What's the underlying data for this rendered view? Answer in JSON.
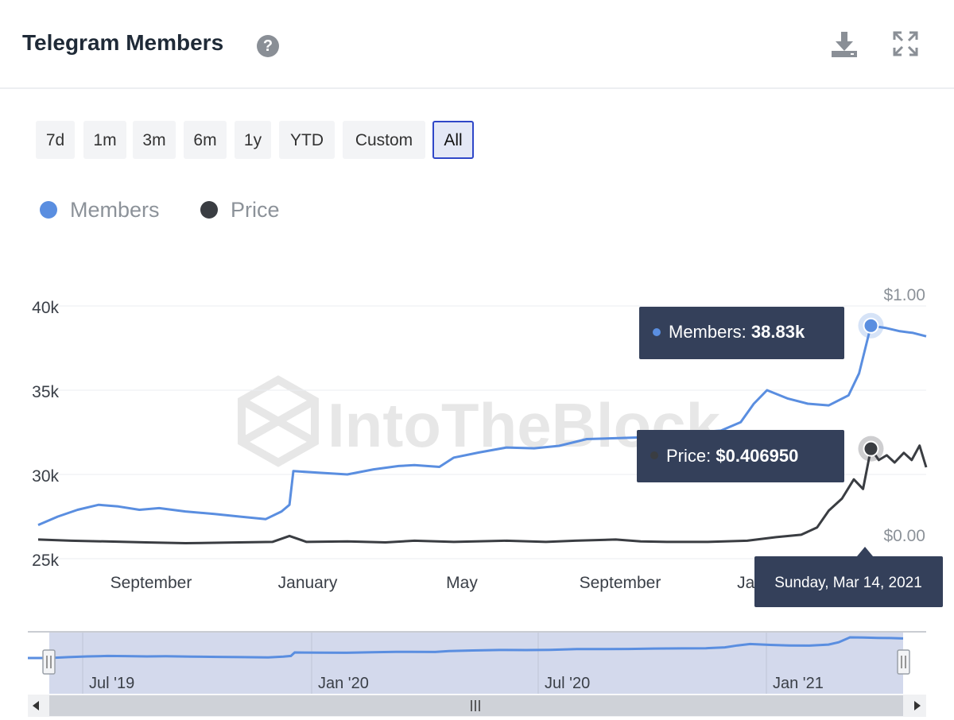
{
  "header": {
    "title": "Telegram Members"
  },
  "icons": {
    "help": "help-icon",
    "download": "download-icon",
    "expand": "expand-icon"
  },
  "ranges": [
    {
      "label": "7d",
      "active": false
    },
    {
      "label": "1m",
      "active": false
    },
    {
      "label": "3m",
      "active": false
    },
    {
      "label": "6m",
      "active": false
    },
    {
      "label": "1y",
      "active": false
    },
    {
      "label": "YTD",
      "active": false
    },
    {
      "label": "Custom",
      "active": false
    },
    {
      "label": "All",
      "active": true
    }
  ],
  "legend": [
    {
      "name": "Members",
      "color": "#5a8ee0"
    },
    {
      "name": "Price",
      "color": "#3a3d42"
    }
  ],
  "watermark": "IntoTheBlock",
  "tooltips": {
    "members_label": "Members: ",
    "members_value": "38.83k",
    "price_label": "Price: ",
    "price_value": "$0.406950",
    "date": "Sunday, Mar 14, 2021"
  },
  "chart_data": {
    "type": "line",
    "x_tick_labels": [
      "September",
      "January",
      "May",
      "September",
      "Jan"
    ],
    "y_left": {
      "ticks": [
        "25k",
        "30k",
        "35k",
        "40k"
      ],
      "range": [
        25000,
        40000
      ]
    },
    "y_right": {
      "ticks": [
        "$0.00",
        "$1.00"
      ],
      "range": [
        0,
        1
      ]
    },
    "series": [
      {
        "name": "Members",
        "color": "#5a8ee0",
        "axis": "left",
        "points": [
          [
            "2019-06-20",
            27000
          ],
          [
            "2019-07-05",
            27500
          ],
          [
            "2019-07-20",
            27900
          ],
          [
            "2019-08-05",
            28200
          ],
          [
            "2019-08-20",
            28100
          ],
          [
            "2019-09-05",
            27900
          ],
          [
            "2019-09-20",
            28000
          ],
          [
            "2019-10-10",
            27800
          ],
          [
            "2019-11-01",
            27650
          ],
          [
            "2019-11-20",
            27500
          ],
          [
            "2019-12-10",
            27350
          ],
          [
            "2019-12-22",
            27800
          ],
          [
            "2019-12-28",
            28200
          ],
          [
            "2019-12-31",
            30200
          ],
          [
            "2020-01-20",
            30100
          ],
          [
            "2020-02-10",
            30000
          ],
          [
            "2020-03-01",
            30300
          ],
          [
            "2020-03-20",
            30500
          ],
          [
            "2020-04-01",
            30550
          ],
          [
            "2020-04-20",
            30450
          ],
          [
            "2020-05-01",
            31000
          ],
          [
            "2020-05-20",
            31300
          ],
          [
            "2020-06-10",
            31600
          ],
          [
            "2020-07-01",
            31550
          ],
          [
            "2020-07-20",
            31700
          ],
          [
            "2020-08-10",
            32100
          ],
          [
            "2020-09-01",
            32150
          ],
          [
            "2020-09-20",
            32200
          ],
          [
            "2020-10-10",
            32400
          ],
          [
            "2020-11-01",
            32500
          ],
          [
            "2020-11-20",
            32600
          ],
          [
            "2020-12-05",
            33100
          ],
          [
            "2020-12-15",
            34200
          ],
          [
            "2020-12-25",
            35000
          ],
          [
            "2021-01-10",
            34500
          ],
          [
            "2021-01-25",
            34200
          ],
          [
            "2021-02-10",
            34100
          ],
          [
            "2021-02-25",
            34700
          ],
          [
            "2021-03-05",
            36000
          ],
          [
            "2021-03-14",
            38830
          ],
          [
            "2021-03-25",
            38700
          ],
          [
            "2021-04-05",
            38500
          ],
          [
            "2021-04-15",
            38400
          ],
          [
            "2021-04-25",
            38200
          ]
        ]
      },
      {
        "name": "Price",
        "color": "#3a3d42",
        "axis": "right",
        "points": [
          [
            "2019-06-20",
            0.03
          ],
          [
            "2019-07-15",
            0.025
          ],
          [
            "2019-08-10",
            0.022
          ],
          [
            "2019-09-10",
            0.018
          ],
          [
            "2019-10-10",
            0.015
          ],
          [
            "2019-11-10",
            0.017
          ],
          [
            "2019-12-15",
            0.02
          ],
          [
            "2019-12-28",
            0.045
          ],
          [
            "2020-01-10",
            0.02
          ],
          [
            "2020-02-10",
            0.022
          ],
          [
            "2020-03-10",
            0.018
          ],
          [
            "2020-04-01",
            0.025
          ],
          [
            "2020-05-01",
            0.02
          ],
          [
            "2020-06-10",
            0.025
          ],
          [
            "2020-07-10",
            0.02
          ],
          [
            "2020-08-01",
            0.025
          ],
          [
            "2020-09-01",
            0.03
          ],
          [
            "2020-09-20",
            0.022
          ],
          [
            "2020-10-10",
            0.02
          ],
          [
            "2020-11-10",
            0.02
          ],
          [
            "2020-12-10",
            0.025
          ],
          [
            "2021-01-01",
            0.04
          ],
          [
            "2021-01-20",
            0.05
          ],
          [
            "2021-02-01",
            0.08
          ],
          [
            "2021-02-10",
            0.15
          ],
          [
            "2021-02-20",
            0.2
          ],
          [
            "2021-03-01",
            0.28
          ],
          [
            "2021-03-08",
            0.24
          ],
          [
            "2021-03-14",
            0.407
          ],
          [
            "2021-03-20",
            0.36
          ],
          [
            "2021-03-26",
            0.38
          ],
          [
            "2021-04-01",
            0.35
          ],
          [
            "2021-04-08",
            0.39
          ],
          [
            "2021-04-14",
            0.36
          ],
          [
            "2021-04-20",
            0.42
          ],
          [
            "2021-04-25",
            0.33
          ]
        ]
      }
    ],
    "navigator": {
      "tick_labels": [
        "Jul '19",
        "Jan '20",
        "Jul '20",
        "Jan '21"
      ]
    }
  }
}
